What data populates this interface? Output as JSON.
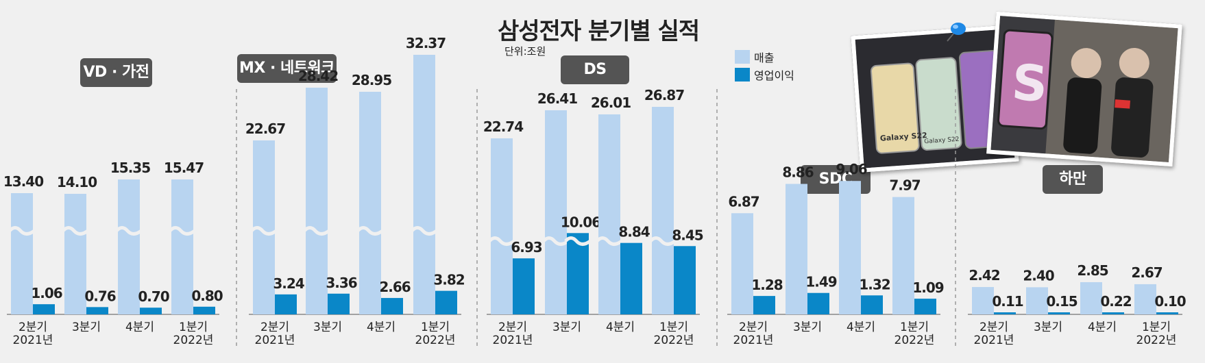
{
  "title": "삼성전자 분기별 실적",
  "unit": "단위:조원",
  "legend": [
    {
      "label": "매출",
      "color": "#b8d4f0"
    },
    {
      "label": "영업이익",
      "color": "#0a87c8"
    }
  ],
  "colors": {
    "revenue": "#b8d4f0",
    "profit": "#0a87c8",
    "label_bg": "#545454"
  },
  "photo_text": {
    "phone1": "Galaxy S22",
    "phone2": "Galaxy S22",
    "phone3": "S"
  },
  "chart_data": [
    {
      "type": "bar",
      "segment": "VD · 가전",
      "categories": [
        "2분기\n2021년",
        "3분기",
        "4분기",
        "1분기\n2022년"
      ],
      "series": [
        {
          "name": "매출",
          "values": [
            13.4,
            14.1,
            15.35,
            15.47
          ]
        },
        {
          "name": "영업이익",
          "values": [
            1.06,
            0.76,
            0.7,
            0.8
          ]
        }
      ]
    },
    {
      "type": "bar",
      "segment": "MX · 네트워크",
      "categories": [
        "2분기\n2021년",
        "3분기",
        "4분기",
        "1분기\n2022년"
      ],
      "series": [
        {
          "name": "매출",
          "values": [
            22.67,
            28.42,
            28.95,
            32.37
          ]
        },
        {
          "name": "영업이익",
          "values": [
            3.24,
            3.36,
            2.66,
            3.82
          ]
        }
      ]
    },
    {
      "type": "bar",
      "segment": "DS",
      "categories": [
        "2분기\n2021년",
        "3분기",
        "4분기",
        "1분기\n2022년"
      ],
      "series": [
        {
          "name": "매출",
          "values": [
            22.74,
            26.41,
            26.01,
            26.87
          ]
        },
        {
          "name": "영업이익",
          "values": [
            6.93,
            10.06,
            8.84,
            8.45
          ]
        }
      ]
    },
    {
      "type": "bar",
      "segment": "SDC",
      "categories": [
        "2분기\n2021년",
        "3분기",
        "4분기",
        "1분기\n2022년"
      ],
      "series": [
        {
          "name": "매출",
          "values": [
            6.87,
            8.86,
            9.06,
            7.97
          ]
        },
        {
          "name": "영업이익",
          "values": [
            1.28,
            1.49,
            1.32,
            1.09
          ]
        }
      ]
    },
    {
      "type": "bar",
      "segment": "하만",
      "categories": [
        "2분기\n2021년",
        "3분기",
        "4분기",
        "1분기\n2022년"
      ],
      "series": [
        {
          "name": "매출",
          "values": [
            2.42,
            2.4,
            2.85,
            2.67
          ]
        },
        {
          "name": "영업이익",
          "values": [
            0.11,
            0.15,
            0.22,
            0.1
          ]
        }
      ]
    }
  ]
}
